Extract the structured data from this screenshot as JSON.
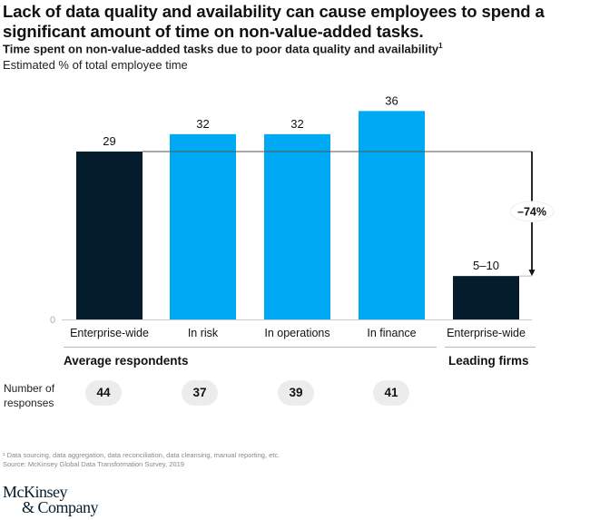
{
  "header": {
    "title": "Lack of data quality and availability can cause employees to spend a significant amount of time on non-value-added tasks.",
    "subtitle": "Time spent on non-value-added tasks due to poor data quality and availability",
    "subtitle_footnote_marker": "1",
    "unit_label": "Estimated % of total employee time"
  },
  "chart_data": {
    "type": "bar",
    "title": "Time spent on non-value-added tasks due to poor data quality and availability",
    "ylabel": "Estimated % of total employee time",
    "xlabel": "",
    "ylim": [
      0,
      36
    ],
    "y_ticks": [
      "0"
    ],
    "grid": false,
    "categories": [
      "Enterprise-wide",
      "In risk",
      "In operations",
      "In finance",
      "Enterprise-wide"
    ],
    "values": [
      29,
      32,
      32,
      36,
      7.5
    ],
    "value_labels": [
      "29",
      "32",
      "32",
      "36",
      "5–10"
    ],
    "colors": [
      "#051c2c",
      "#00a9f4",
      "#00a9f4",
      "#00a9f4",
      "#051c2c"
    ],
    "groups": [
      {
        "label": "Average respondents",
        "categories_index": [
          0,
          1,
          2,
          3
        ]
      },
      {
        "label": "Leading firms",
        "categories_index": [
          4
        ]
      }
    ],
    "annotation": {
      "label": "–74%",
      "from_value": 29,
      "to_value": 7.5,
      "description": "reduction from average enterprise-wide to leading firms"
    },
    "responses": {
      "label": "Number of responses",
      "values": [
        "44",
        "37",
        "39",
        "41"
      ]
    }
  },
  "footer": {
    "footnote": "¹ Data sourcing, data aggregation, data reconciliation, data cleansing, manual reporting, etc.",
    "source": "Source: McKinsey Global Data Transformation Survey, 2019",
    "logo_line1": "McKinsey",
    "logo_line2": "& Company"
  }
}
